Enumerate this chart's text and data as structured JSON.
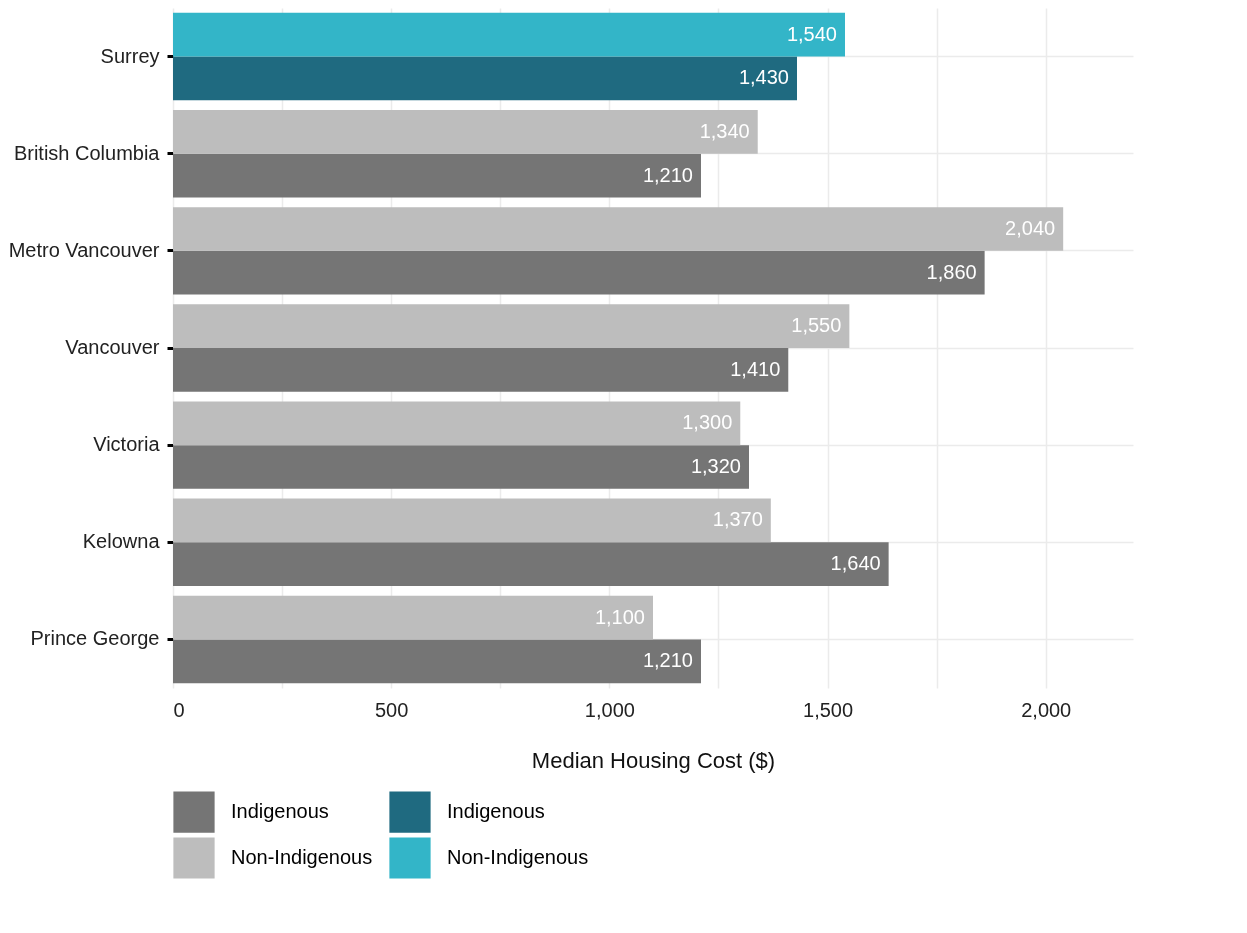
{
  "chart_data": {
    "type": "bar",
    "orientation": "horizontal",
    "xlabel": "Median Housing Cost ($)",
    "categories": [
      "Surrey",
      "British Columbia",
      "Metro Vancouver",
      "Vancouver",
      "Victoria",
      "Kelowna",
      "Prince George"
    ],
    "series": [
      {
        "name": "Indigenous",
        "color": "#757575",
        "values": [
          null,
          1210,
          1860,
          1410,
          1320,
          1640,
          1210
        ],
        "value_labels": [
          null,
          "1,210",
          "1,860",
          "1,410",
          "1,320",
          "1,640",
          "1,210"
        ]
      },
      {
        "name": "Non-Indigenous",
        "color": "#bdbdbd",
        "values": [
          null,
          1340,
          2040,
          1550,
          1300,
          1370,
          1100
        ],
        "value_labels": [
          null,
          "1,340",
          "2,040",
          "1,550",
          "1,300",
          "1,370",
          "1,100"
        ]
      },
      {
        "name": "Indigenous",
        "color": "#1f6a80",
        "values": [
          1430,
          null,
          null,
          null,
          null,
          null,
          null
        ],
        "value_labels": [
          "1,430",
          null,
          null,
          null,
          null,
          null,
          null
        ]
      },
      {
        "name": "Non-Indigenous",
        "color": "#33b5c8",
        "values": [
          1540,
          null,
          null,
          null,
          null,
          null,
          null
        ],
        "value_labels": [
          "1,540",
          null,
          null,
          null,
          null,
          null,
          null
        ]
      }
    ],
    "xlim": [
      0,
      2200
    ],
    "xticks": [
      0,
      {
        "value": 250,
        "label": null
      },
      500,
      {
        "value": 750,
        "label": null
      },
      {
        "value": 1000,
        "label": "1,000"
      },
      {
        "value": 1250,
        "label": null
      },
      {
        "value": 1500,
        "label": "1,500"
      },
      {
        "value": 1750,
        "label": null
      },
      {
        "value": 2000,
        "label": "2,000"
      }
    ],
    "grid": true,
    "legend": "bottom"
  }
}
